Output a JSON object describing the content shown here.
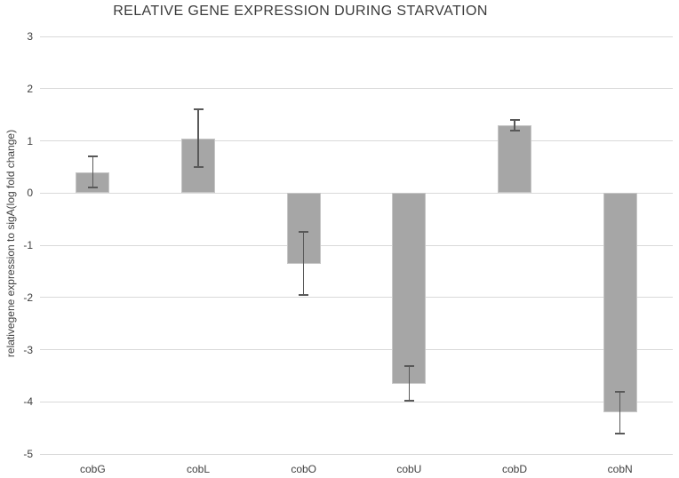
{
  "title": "RELATIVE GENE EXPRESSION DURING STARVATION",
  "chart_data": {
    "type": "bar",
    "title": "RELATIVE GENE EXPRESSION DURING STARVATION",
    "categories": [
      "cobG",
      "cobL",
      "cobO",
      "cobU",
      "cobD",
      "cobN"
    ],
    "values": [
      0.4,
      1.05,
      -1.35,
      -3.65,
      1.3,
      -4.2
    ],
    "error_bars": [
      0.3,
      0.55,
      0.6,
      0.33,
      0.1,
      0.4
    ],
    "xlabel": "",
    "ylabel": "relativegene expression to sigA(log fold change)",
    "ylim": [
      -5,
      3
    ],
    "ytick_step": 1,
    "ytick_labels": [
      "3",
      "2",
      "1",
      "0",
      "-1",
      "-2",
      "-3",
      "-4",
      "-5"
    ],
    "grid": "horizontal",
    "legend": "none",
    "colors": {
      "bar_fill": "#a6a6a6",
      "bar_border": "#c6c6c6",
      "error_bar": "#595959",
      "gridline": "#d9d9d9",
      "text": "#3f3f3f",
      "background": "#ffffff"
    }
  }
}
